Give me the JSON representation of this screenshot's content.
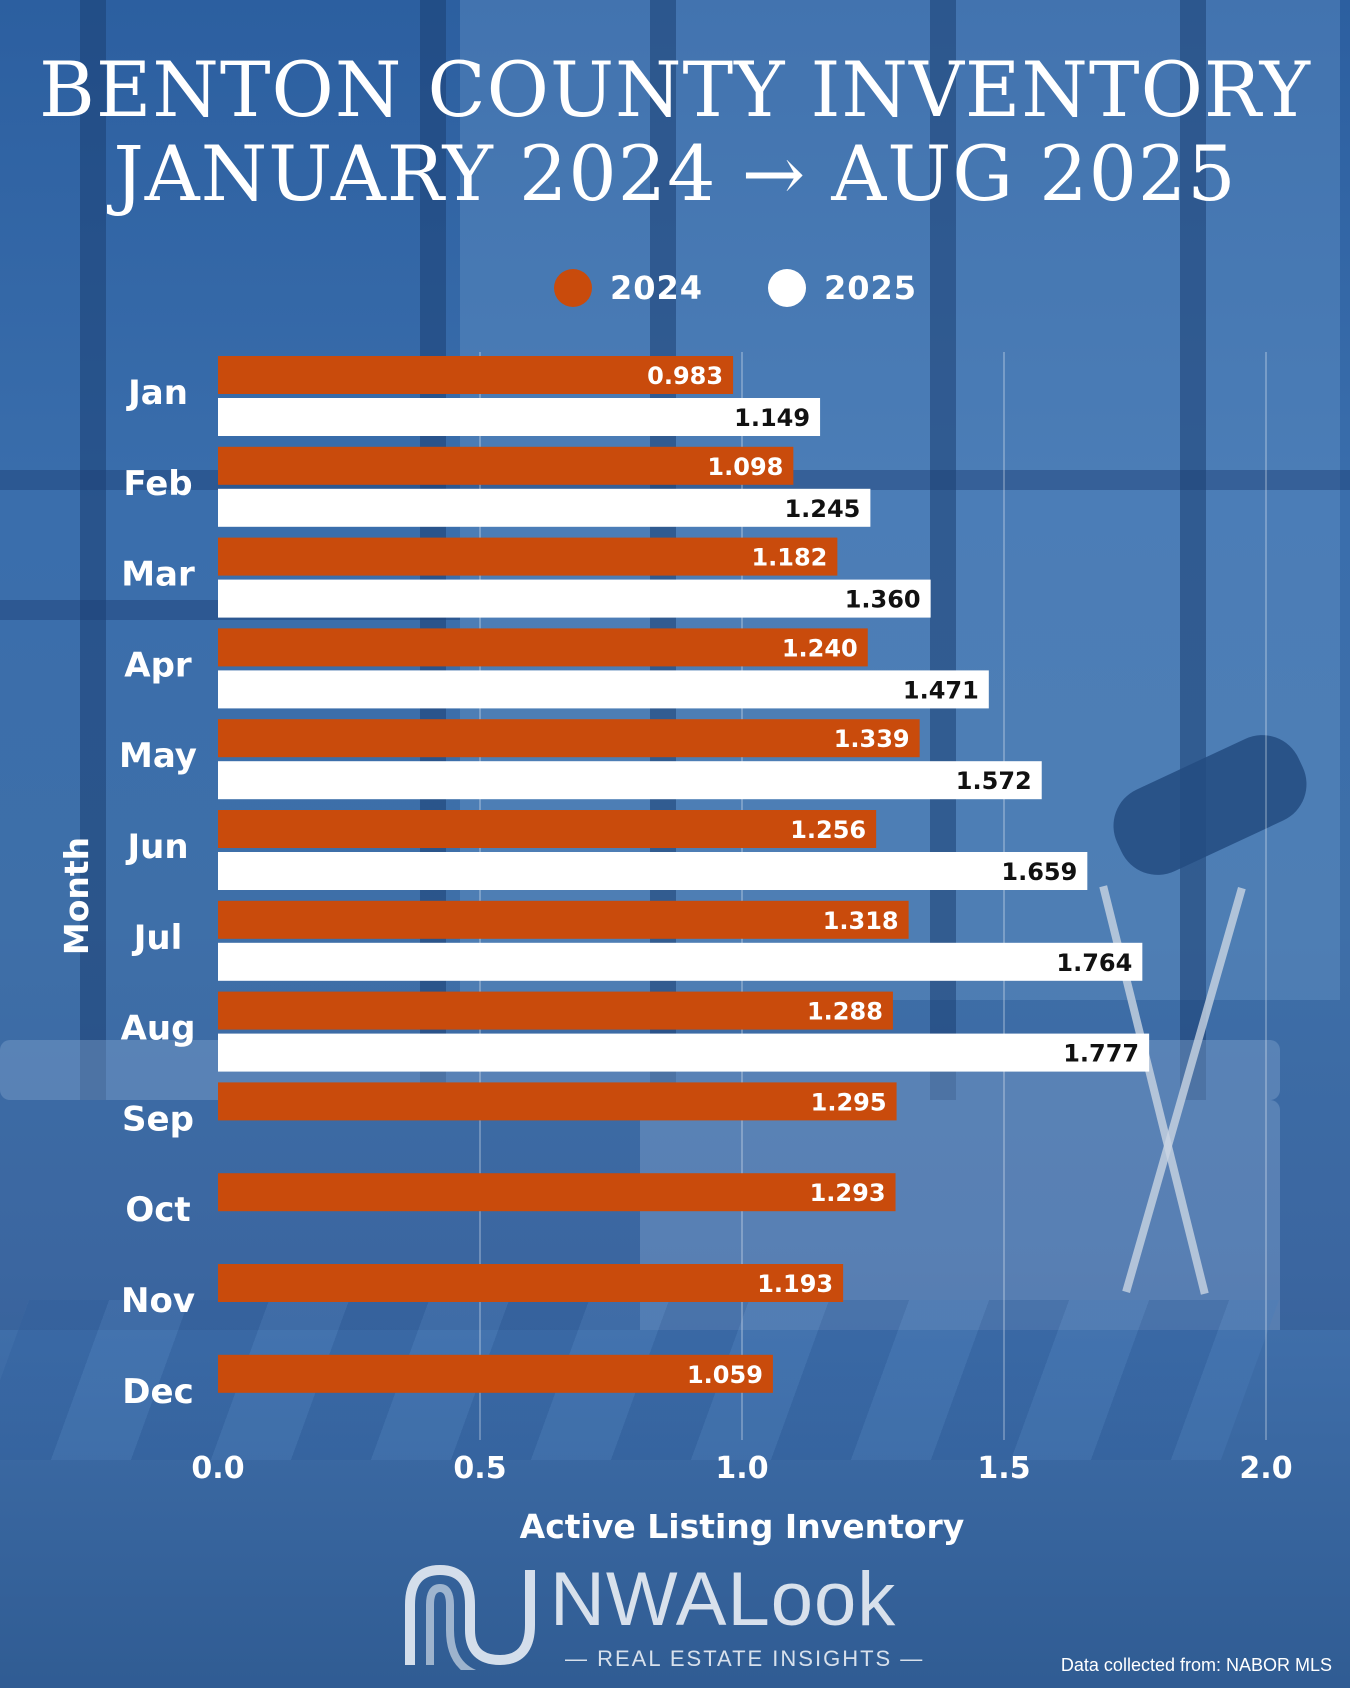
{
  "header": {
    "title_line1": "BENTON COUNTY INVENTORY",
    "title_line2": "JANUARY 2024 → AUG 2025"
  },
  "colors": {
    "series_2024": "#c94b0c",
    "series_2025": "#ffffff",
    "background": "#3a6eac"
  },
  "chart_data": {
    "type": "bar",
    "orientation": "horizontal",
    "categories": [
      "Jan",
      "Feb",
      "Mar",
      "Apr",
      "May",
      "Jun",
      "Jul",
      "Aug",
      "Sep",
      "Oct",
      "Nov",
      "Dec"
    ],
    "series": [
      {
        "name": "2024",
        "values": [
          0.983,
          1.098,
          1.182,
          1.24,
          1.339,
          1.256,
          1.318,
          1.288,
          1.295,
          1.293,
          1.193,
          1.059
        ],
        "labels": [
          "0.983",
          "1.098",
          "1.182",
          "1.240",
          "1.339",
          "1.256",
          "1.318",
          "1.288",
          "1.295",
          "1.293",
          "1.193",
          "1.059"
        ]
      },
      {
        "name": "2025",
        "values": [
          1.149,
          1.245,
          1.36,
          1.471,
          1.572,
          1.659,
          1.764,
          1.777,
          null,
          null,
          null,
          null
        ],
        "labels": [
          "1.149",
          "1.245",
          "1.360",
          "1.471",
          "1.572",
          "1.659",
          "1.764",
          "1.777",
          "",
          "",
          "",
          ""
        ]
      }
    ],
    "xlabel": "Active Listing Inventory",
    "ylabel": "Month",
    "xlim": [
      0,
      2.0
    ],
    "xticks": [
      "0.0",
      "0.5",
      "1.0",
      "1.5",
      "2.0"
    ],
    "grid": true,
    "legend_position": "top-center"
  },
  "branding": {
    "logo_text": "NWALook",
    "tagline": "— REAL ESTATE INSIGHTS —",
    "source_note": "Data collected from: NABOR MLS"
  }
}
